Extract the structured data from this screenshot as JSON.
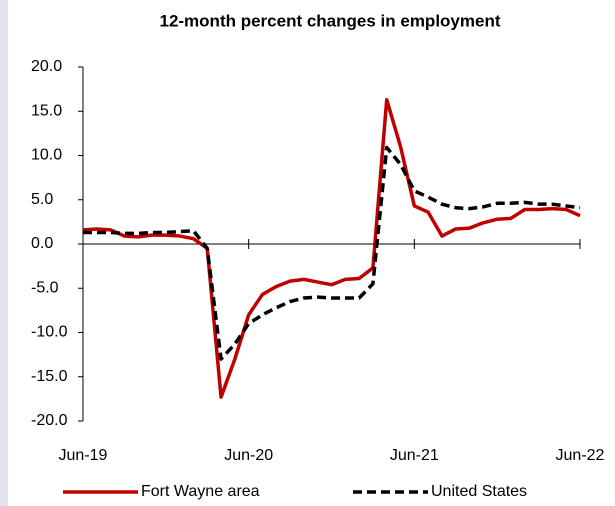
{
  "chart_data": {
    "type": "line",
    "title": "12-month percent changes in employment",
    "categories": [
      "Jun-19",
      null,
      null,
      null,
      null,
      null,
      null,
      null,
      null,
      null,
      null,
      null,
      "Jun-20",
      null,
      null,
      null,
      null,
      null,
      null,
      null,
      null,
      null,
      null,
      null,
      "Jun-21",
      null,
      null,
      null,
      null,
      null,
      null,
      null,
      null,
      null,
      null,
      null,
      "Jun-22"
    ],
    "series": [
      {
        "name": "Fort Wayne area",
        "color": "#c00000",
        "dash": false,
        "values": [
          1.6,
          1.7,
          1.6,
          0.9,
          0.8,
          1.0,
          1.0,
          0.9,
          0.6,
          -0.5,
          -17.3,
          -13.0,
          -8.0,
          -5.7,
          -4.8,
          -4.2,
          -4.0,
          -4.3,
          -4.6,
          -4.0,
          -3.9,
          -2.7,
          16.3,
          11.0,
          4.3,
          3.6,
          0.9,
          1.7,
          1.8,
          2.4,
          2.8,
          2.9,
          3.9,
          3.9,
          4.0,
          3.9,
          3.2
        ]
      },
      {
        "name": "United States",
        "color": "#000000",
        "dash": true,
        "values": [
          1.3,
          1.3,
          1.3,
          1.2,
          1.2,
          1.3,
          1.3,
          1.4,
          1.5,
          -0.5,
          -13.0,
          -11.3,
          -9.0,
          -8.0,
          -7.2,
          -6.5,
          -6.1,
          -6.0,
          -6.1,
          -6.1,
          -6.1,
          -4.5,
          10.9,
          9.0,
          6.0,
          5.3,
          4.5,
          4.1,
          4.0,
          4.2,
          4.6,
          4.6,
          4.7,
          4.5,
          4.5,
          4.3,
          4.1
        ]
      }
    ],
    "ylim": [
      -20,
      20
    ],
    "yticks": [
      {
        "value": -20,
        "label": "-20.0"
      },
      {
        "value": -15,
        "label": "-15.0"
      },
      {
        "value": -10,
        "label": "-10.0"
      },
      {
        "value": -5,
        "label": "-5.0"
      },
      {
        "value": 0,
        "label": "0.0"
      },
      {
        "value": 5,
        "label": "5.0"
      },
      {
        "value": 10,
        "label": "10.0"
      },
      {
        "value": 15,
        "label": "15.0"
      },
      {
        "value": 20,
        "label": "20.0"
      }
    ],
    "grid": false
  }
}
